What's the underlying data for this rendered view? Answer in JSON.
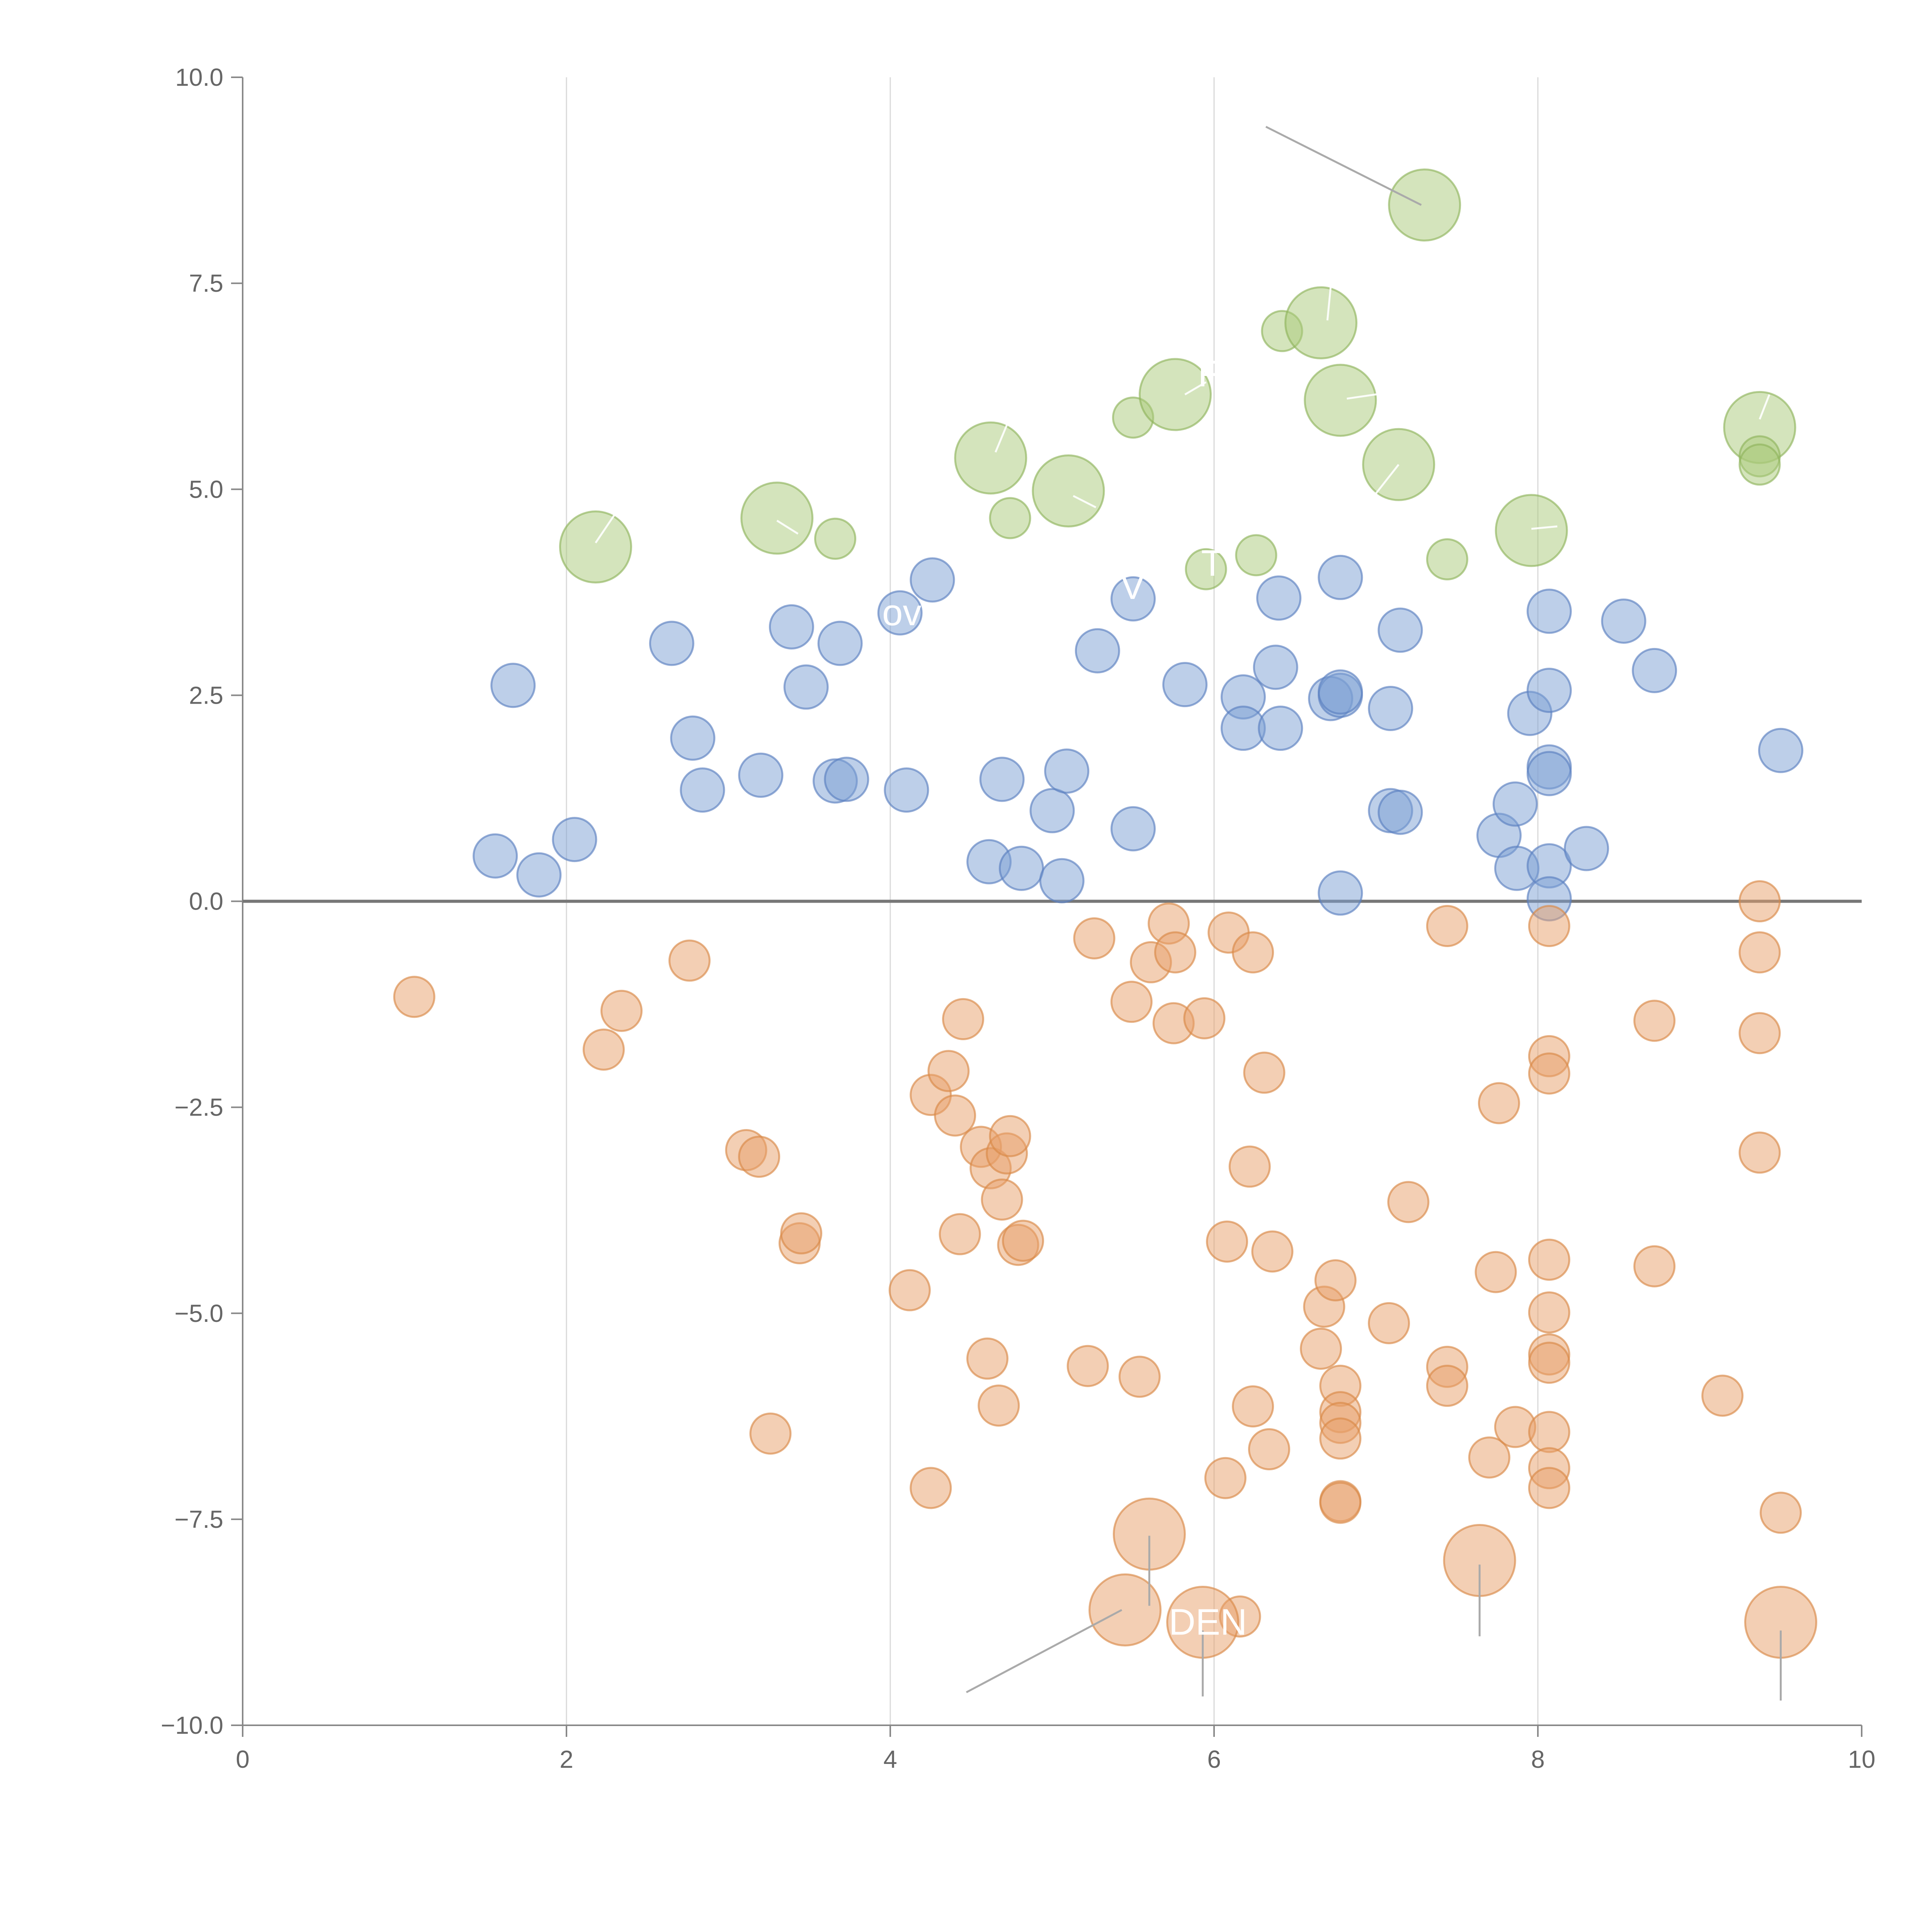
{
  "chart_data": {
    "type": "scatter",
    "title": "",
    "xlabel": "",
    "ylabel": "",
    "xlim": [
      0,
      10
    ],
    "ylim": [
      -10,
      10
    ],
    "grid": "vertical",
    "legend": "none",
    "x_ticks": [
      {
        "v": 0,
        "label": "0"
      },
      {
        "v": 2,
        "label": "2"
      },
      {
        "v": 4,
        "label": "4"
      },
      {
        "v": 6,
        "label": "6"
      },
      {
        "v": 8,
        "label": "8"
      },
      {
        "v": 10,
        "label": "10"
      }
    ],
    "y_ticks": [
      {
        "v": 10,
        "label": "10.0"
      },
      {
        "v": 7.5,
        "label": "7.5"
      },
      {
        "v": 5,
        "label": "5.0"
      },
      {
        "v": 2.5,
        "label": "2.5"
      },
      {
        "v": 0,
        "label": "0.0"
      },
      {
        "v": -2.5,
        "label": "−2.5"
      },
      {
        "v": -5,
        "label": "−5.0"
      },
      {
        "v": -7.5,
        "label": "−7.5"
      },
      {
        "v": -10,
        "label": "−10.0"
      }
    ],
    "colors": {
      "green": "#a9c97a",
      "green_edge": "#8fb35c",
      "blue": "#7b9fd4",
      "blue_edge": "#5a80c0",
      "orange": "#e8a06a",
      "orange_edge": "#d98847",
      "zero_line": "#777777",
      "leader": "#aaaaaa"
    },
    "series": [
      {
        "name": "green",
        "color_key": "green",
        "points": [
          {
            "x": 2.18,
            "y": 4.3,
            "r": "large"
          },
          {
            "x": 3.3,
            "y": 4.65,
            "r": "large"
          },
          {
            "x": 3.66,
            "y": 4.4,
            "r": "small"
          },
          {
            "x": 4.62,
            "y": 5.38,
            "r": "large"
          },
          {
            "x": 4.74,
            "y": 4.65,
            "r": "small"
          },
          {
            "x": 5.1,
            "y": 4.98,
            "r": "large"
          },
          {
            "x": 5.5,
            "y": 5.87,
            "r": "small"
          },
          {
            "x": 5.76,
            "y": 6.15,
            "r": "large"
          },
          {
            "x": 5.95,
            "y": 4.03,
            "r": "small"
          },
          {
            "x": 6.26,
            "y": 4.2,
            "r": "small"
          },
          {
            "x": 6.42,
            "y": 6.92,
            "r": "small"
          },
          {
            "x": 6.66,
            "y": 7.02,
            "r": "large"
          },
          {
            "x": 6.78,
            "y": 6.08,
            "r": "large"
          },
          {
            "x": 7.14,
            "y": 5.3,
            "r": "large"
          },
          {
            "x": 7.3,
            "y": 8.45,
            "r": "large"
          },
          {
            "x": 7.44,
            "y": 4.15,
            "r": "small"
          },
          {
            "x": 7.96,
            "y": 4.5,
            "r": "large"
          },
          {
            "x": 9.37,
            "y": 5.75,
            "r": "large"
          },
          {
            "x": 9.37,
            "y": 5.4,
            "r": "small"
          },
          {
            "x": 9.37,
            "y": 5.3,
            "r": "small"
          }
        ]
      },
      {
        "name": "blue",
        "color_key": "blue",
        "points": [
          {
            "x": 1.56,
            "y": 0.55
          },
          {
            "x": 1.67,
            "y": 2.62
          },
          {
            "x": 1.83,
            "y": 0.32
          },
          {
            "x": 2.05,
            "y": 0.75
          },
          {
            "x": 2.65,
            "y": 3.13
          },
          {
            "x": 2.78,
            "y": 1.98
          },
          {
            "x": 2.84,
            "y": 1.35
          },
          {
            "x": 3.2,
            "y": 1.53
          },
          {
            "x": 3.39,
            "y": 3.33
          },
          {
            "x": 3.48,
            "y": 2.6
          },
          {
            "x": 3.66,
            "y": 1.46
          },
          {
            "x": 3.69,
            "y": 3.13
          },
          {
            "x": 3.73,
            "y": 1.48
          },
          {
            "x": 4.06,
            "y": 3.5
          },
          {
            "x": 4.1,
            "y": 1.35
          },
          {
            "x": 4.26,
            "y": 3.9
          },
          {
            "x": 4.61,
            "y": 0.48
          },
          {
            "x": 4.69,
            "y": 1.48
          },
          {
            "x": 4.81,
            "y": 0.4
          },
          {
            "x": 5.0,
            "y": 1.1
          },
          {
            "x": 5.06,
            "y": 0.25
          },
          {
            "x": 5.09,
            "y": 1.58
          },
          {
            "x": 5.28,
            "y": 3.04
          },
          {
            "x": 5.5,
            "y": 0.88
          },
          {
            "x": 5.5,
            "y": 3.67
          },
          {
            "x": 5.82,
            "y": 2.63
          },
          {
            "x": 6.18,
            "y": 2.48
          },
          {
            "x": 6.18,
            "y": 2.1
          },
          {
            "x": 6.38,
            "y": 2.84
          },
          {
            "x": 6.4,
            "y": 3.68
          },
          {
            "x": 6.41,
            "y": 2.1
          },
          {
            "x": 6.72,
            "y": 2.46
          },
          {
            "x": 6.78,
            "y": 2.5
          },
          {
            "x": 6.78,
            "y": 2.54
          },
          {
            "x": 6.78,
            "y": 3.93
          },
          {
            "x": 6.78,
            "y": 0.1
          },
          {
            "x": 7.09,
            "y": 2.34
          },
          {
            "x": 7.09,
            "y": 1.1
          },
          {
            "x": 7.15,
            "y": 1.08
          },
          {
            "x": 7.15,
            "y": 3.29
          },
          {
            "x": 7.76,
            "y": 0.8
          },
          {
            "x": 7.86,
            "y": 1.18
          },
          {
            "x": 7.87,
            "y": 0.4
          },
          {
            "x": 7.95,
            "y": 2.28
          },
          {
            "x": 8.07,
            "y": 3.52
          },
          {
            "x": 8.07,
            "y": 2.56
          },
          {
            "x": 8.07,
            "y": 1.63
          },
          {
            "x": 8.07,
            "y": 1.55
          },
          {
            "x": 8.07,
            "y": 0.43
          },
          {
            "x": 8.07,
            "y": 0.03
          },
          {
            "x": 8.3,
            "y": 0.64
          },
          {
            "x": 8.53,
            "y": 3.4
          },
          {
            "x": 8.72,
            "y": 2.8
          },
          {
            "x": 9.5,
            "y": 1.83
          }
        ]
      },
      {
        "name": "orange",
        "color_key": "orange",
        "points": [
          {
            "x": 1.06,
            "y": -1.16,
            "r": "small"
          },
          {
            "x": 2.23,
            "y": -1.8,
            "r": "small"
          },
          {
            "x": 2.34,
            "y": -1.33,
            "r": "small"
          },
          {
            "x": 2.76,
            "y": -0.72,
            "r": "small"
          },
          {
            "x": 3.11,
            "y": -3.02,
            "r": "small"
          },
          {
            "x": 3.19,
            "y": -3.1,
            "r": "small"
          },
          {
            "x": 3.26,
            "y": -6.46,
            "r": "small"
          },
          {
            "x": 3.44,
            "y": -4.15,
            "r": "small"
          },
          {
            "x": 3.45,
            "y": -4.03,
            "r": "small"
          },
          {
            "x": 4.12,
            "y": -4.72,
            "r": "small"
          },
          {
            "x": 4.25,
            "y": -7.12,
            "r": "small"
          },
          {
            "x": 4.25,
            "y": -2.35,
            "r": "small"
          },
          {
            "x": 4.36,
            "y": -2.06,
            "r": "small"
          },
          {
            "x": 4.4,
            "y": -2.6,
            "r": "small"
          },
          {
            "x": 4.43,
            "y": -4.04,
            "r": "small"
          },
          {
            "x": 4.45,
            "y": -1.43,
            "r": "small"
          },
          {
            "x": 4.56,
            "y": -2.98,
            "r": "small"
          },
          {
            "x": 4.6,
            "y": -5.55,
            "r": "small"
          },
          {
            "x": 4.62,
            "y": -3.24,
            "r": "small"
          },
          {
            "x": 4.67,
            "y": -6.12,
            "r": "small"
          },
          {
            "x": 4.69,
            "y": -3.62,
            "r": "small"
          },
          {
            "x": 4.72,
            "y": -3.06,
            "r": "small"
          },
          {
            "x": 4.74,
            "y": -2.85,
            "r": "small"
          },
          {
            "x": 4.79,
            "y": -4.17,
            "r": "small"
          },
          {
            "x": 4.82,
            "y": -4.12,
            "r": "small"
          },
          {
            "x": 5.22,
            "y": -5.64,
            "r": "small"
          },
          {
            "x": 5.26,
            "y": -0.45,
            "r": "small"
          },
          {
            "x": 5.49,
            "y": -1.22,
            "r": "small"
          },
          {
            "x": 5.54,
            "y": -5.77,
            "r": "small"
          },
          {
            "x": 5.61,
            "y": -0.74,
            "r": "small"
          },
          {
            "x": 5.72,
            "y": -0.27,
            "r": "small"
          },
          {
            "x": 5.75,
            "y": -1.48,
            "r": "small"
          },
          {
            "x": 5.76,
            "y": -0.62,
            "r": "small"
          },
          {
            "x": 5.94,
            "y": -1.42,
            "r": "small"
          },
          {
            "x": 6.08,
            "y": -4.13,
            "r": "small"
          },
          {
            "x": 6.07,
            "y": -7.0,
            "r": "small"
          },
          {
            "x": 6.09,
            "y": -0.38,
            "r": "small"
          },
          {
            "x": 6.16,
            "y": -8.68,
            "r": "small"
          },
          {
            "x": 6.22,
            "y": -3.22,
            "r": "small"
          },
          {
            "x": 6.24,
            "y": -6.13,
            "r": "small"
          },
          {
            "x": 6.24,
            "y": -0.62,
            "r": "small"
          },
          {
            "x": 6.31,
            "y": -2.08,
            "r": "small"
          },
          {
            "x": 6.34,
            "y": -6.65,
            "r": "small"
          },
          {
            "x": 6.36,
            "y": -4.25,
            "r": "small"
          },
          {
            "x": 6.66,
            "y": -5.43,
            "r": "small"
          },
          {
            "x": 6.68,
            "y": -4.92,
            "r": "small"
          },
          {
            "x": 6.75,
            "y": -4.6,
            "r": "small"
          },
          {
            "x": 6.78,
            "y": -5.88,
            "r": "small"
          },
          {
            "x": 6.78,
            "y": -6.2,
            "r": "small"
          },
          {
            "x": 6.78,
            "y": -6.33,
            "r": "small"
          },
          {
            "x": 6.78,
            "y": -6.52,
            "r": "small"
          },
          {
            "x": 6.78,
            "y": -7.28,
            "r": "small"
          },
          {
            "x": 6.78,
            "y": -7.3,
            "r": "small"
          },
          {
            "x": 7.08,
            "y": -5.12,
            "r": "small"
          },
          {
            "x": 7.2,
            "y": -3.65,
            "r": "small"
          },
          {
            "x": 7.44,
            "y": -0.3,
            "r": "small"
          },
          {
            "x": 7.44,
            "y": -5.65,
            "r": "small"
          },
          {
            "x": 7.44,
            "y": -5.88,
            "r": "small"
          },
          {
            "x": 7.7,
            "y": -6.75,
            "r": "small"
          },
          {
            "x": 7.74,
            "y": -4.5,
            "r": "small"
          },
          {
            "x": 7.76,
            "y": -2.45,
            "r": "small"
          },
          {
            "x": 7.86,
            "y": -6.38,
            "r": "small"
          },
          {
            "x": 8.07,
            "y": -0.3,
            "r": "small"
          },
          {
            "x": 8.07,
            "y": -1.88,
            "r": "small"
          },
          {
            "x": 8.07,
            "y": -2.09,
            "r": "small"
          },
          {
            "x": 8.07,
            "y": -4.35,
            "r": "small"
          },
          {
            "x": 8.07,
            "y": -4.99,
            "r": "small"
          },
          {
            "x": 8.07,
            "y": -5.5,
            "r": "small"
          },
          {
            "x": 8.07,
            "y": -5.6,
            "r": "small"
          },
          {
            "x": 8.07,
            "y": -6.44,
            "r": "small"
          },
          {
            "x": 8.07,
            "y": -6.88,
            "r": "small"
          },
          {
            "x": 8.07,
            "y": -7.12,
            "r": "small"
          },
          {
            "x": 8.72,
            "y": -1.45,
            "r": "small"
          },
          {
            "x": 8.72,
            "y": -4.43,
            "r": "small"
          },
          {
            "x": 9.14,
            "y": -6.0,
            "r": "small"
          },
          {
            "x": 9.37,
            "y": 0.0,
            "r": "small"
          },
          {
            "x": 9.37,
            "y": -0.62,
            "r": "small"
          },
          {
            "x": 9.37,
            "y": -1.6,
            "r": "small"
          },
          {
            "x": 9.37,
            "y": -3.05,
            "r": "small"
          },
          {
            "x": 9.5,
            "y": -7.42,
            "r": "small"
          },
          {
            "x": 5.6,
            "y": -7.68,
            "r": "large"
          },
          {
            "x": 5.45,
            "y": -8.6,
            "r": "large"
          },
          {
            "x": 5.93,
            "y": -8.75,
            "r": "large"
          },
          {
            "x": 7.64,
            "y": -8.0,
            "r": "large"
          },
          {
            "x": 9.5,
            "y": -8.75,
            "r": "large"
          }
        ]
      }
    ],
    "annotations": [
      {
        "text": "F",
        "x": 5.9,
        "y": 6.25,
        "color": "#ffffff"
      },
      {
        "text": "V",
        "x": 5.42,
        "y": 3.67,
        "color": "#ffffff"
      },
      {
        "text": "T",
        "x": 5.92,
        "y": 3.95,
        "color": "#ffffff"
      },
      {
        "text": "ov",
        "x": 3.95,
        "y": 3.35,
        "color": "#ffffff"
      },
      {
        "text": "DEN",
        "x": 5.72,
        "y": -8.9,
        "color": "#ffffff"
      }
    ],
    "leader_lines": [
      {
        "x1": 6.32,
        "y1": 9.4,
        "x2": 7.28,
        "y2": 8.45
      },
      {
        "x1": 5.6,
        "y1": -7.7,
        "x2": 5.6,
        "y2": -8.55
      },
      {
        "x1": 5.43,
        "y1": -8.6,
        "x2": 4.47,
        "y2": -9.6
      },
      {
        "x1": 5.93,
        "y1": -8.85,
        "x2": 5.93,
        "y2": -9.65
      },
      {
        "x1": 7.64,
        "y1": -8.05,
        "x2": 7.64,
        "y2": -8.92
      },
      {
        "x1": 9.5,
        "y1": -8.85,
        "x2": 9.5,
        "y2": -9.7
      },
      {
        "x1": 6.7,
        "y1": 7.05,
        "x2": 6.72,
        "y2": 7.45,
        "white": true
      },
      {
        "x1": 6.82,
        "y1": 6.1,
        "x2": 7.1,
        "y2": 6.18,
        "white": true
      },
      {
        "x1": 5.82,
        "y1": 6.15,
        "x2": 5.95,
        "y2": 6.3,
        "white": true
      },
      {
        "x1": 7.14,
        "y1": 5.3,
        "x2": 7.0,
        "y2": 4.95,
        "white": true
      },
      {
        "x1": 4.65,
        "y1": 5.45,
        "x2": 4.72,
        "y2": 5.78,
        "white": true
      },
      {
        "x1": 5.13,
        "y1": 4.92,
        "x2": 5.27,
        "y2": 4.78,
        "white": true
      },
      {
        "x1": 3.3,
        "y1": 4.62,
        "x2": 3.43,
        "y2": 4.46,
        "white": true
      },
      {
        "x1": 2.18,
        "y1": 4.35,
        "x2": 2.3,
        "y2": 4.7,
        "white": true
      },
      {
        "x1": 7.96,
        "y1": 4.52,
        "x2": 8.12,
        "y2": 4.55,
        "white": true
      },
      {
        "x1": 9.37,
        "y1": 5.85,
        "x2": 9.43,
        "y2": 6.15,
        "white": true
      }
    ]
  }
}
